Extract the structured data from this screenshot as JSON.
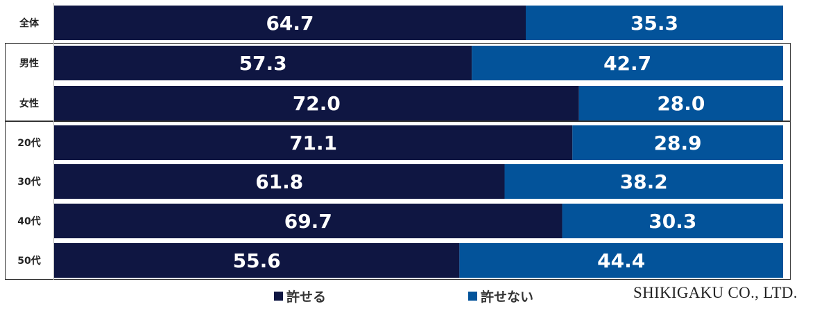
{
  "chart_data": {
    "type": "bar",
    "orientation": "horizontal",
    "stacked": true,
    "categories": [
      "全体",
      "男性",
      "女性",
      "20代",
      "30代",
      "40代",
      "50代"
    ],
    "series": [
      {
        "name": "許せる",
        "color": "#0f1642",
        "values": [
          64.7,
          57.3,
          72.0,
          71.1,
          61.8,
          69.7,
          55.6
        ]
      },
      {
        "name": "許せない",
        "color": "#03539a",
        "values": [
          35.3,
          42.7,
          28.0,
          28.9,
          38.2,
          30.3,
          44.4
        ]
      }
    ],
    "value_labels": [
      [
        "64.7",
        "57.3",
        "72.0",
        "71.1",
        "61.8",
        "69.7",
        "55.6"
      ],
      [
        "35.3",
        "42.7",
        "28.0",
        "28.9",
        "38.2",
        "30.3",
        "44.4"
      ]
    ],
    "xlim": [
      0,
      100
    ],
    "grid": false,
    "legend_position": "bottom"
  },
  "footer": {
    "credit": "SHIKIGAKU CO., LTD."
  }
}
